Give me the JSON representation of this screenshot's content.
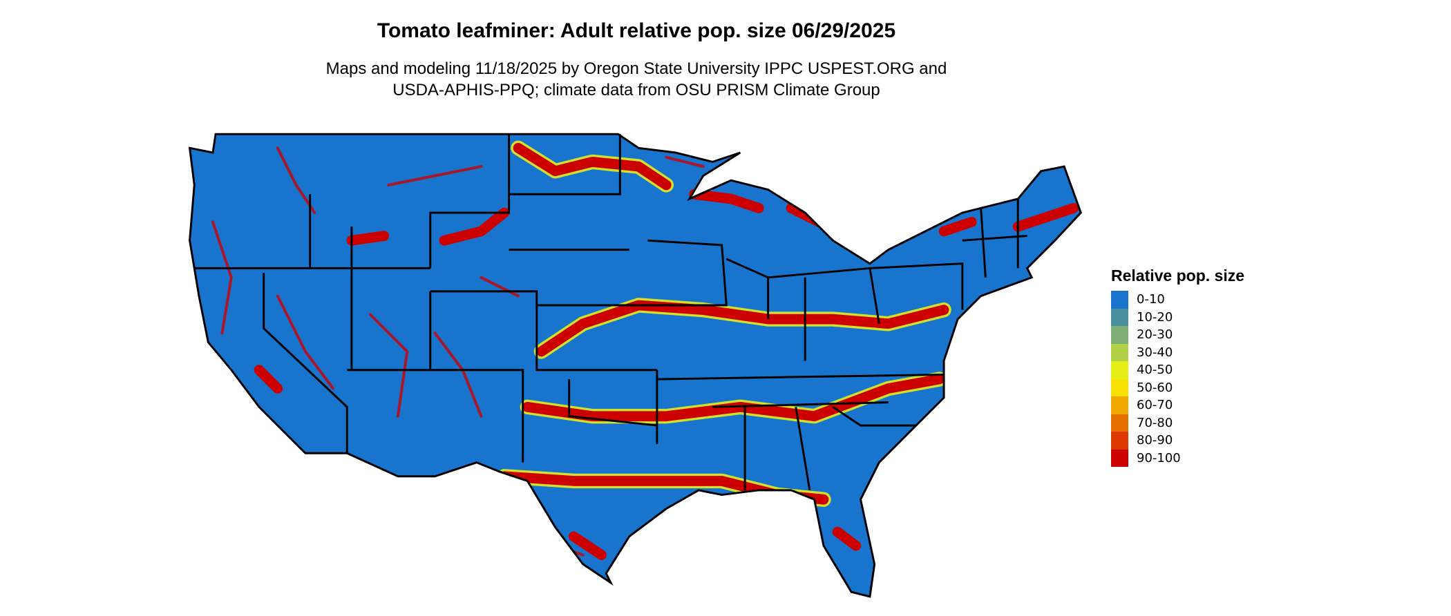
{
  "title": "Tomato leafminer: Adult relative pop. size 06/29/2025",
  "subtitle_lines": [
    "Maps and modeling 11/18/2025 by Oregon State University IPPC USPEST.ORG and",
    "USDA-APHIS-PPQ; climate data from OSU PRISM Climate Group"
  ],
  "map": {
    "region": "Contiguous United States",
    "background_class": "0-10",
    "state_borders": true
  },
  "legend": {
    "title": "Relative pop. size",
    "items": [
      {
        "label": "0-10",
        "color": "#1874CD"
      },
      {
        "label": "10-20",
        "color": "#4A8F9E"
      },
      {
        "label": "20-30",
        "color": "#7DAF74"
      },
      {
        "label": "30-40",
        "color": "#B2D046"
      },
      {
        "label": "40-50",
        "color": "#E5EE16"
      },
      {
        "label": "50-60",
        "color": "#F8E000"
      },
      {
        "label": "60-70",
        "color": "#F0A800"
      },
      {
        "label": "70-80",
        "color": "#E57000"
      },
      {
        "label": "80-90",
        "color": "#DC3800"
      },
      {
        "label": "90-100",
        "color": "#CD0000"
      }
    ]
  }
}
